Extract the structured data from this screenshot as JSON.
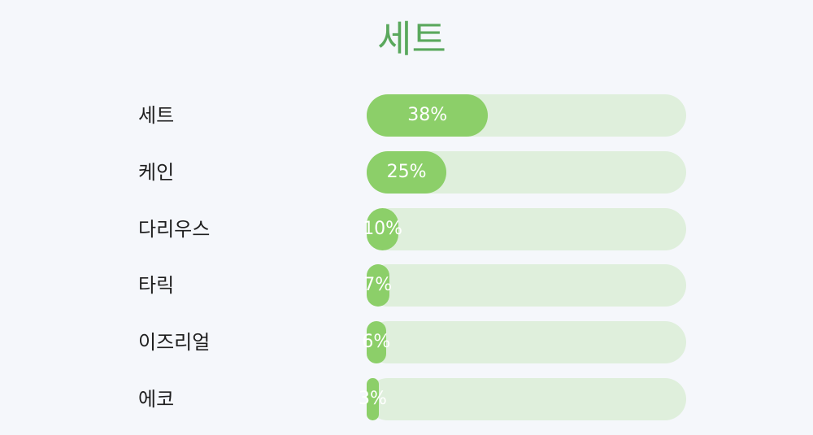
{
  "chart_data": {
    "type": "bar",
    "orientation": "horizontal",
    "title": "세트",
    "categories": [
      "세트",
      "케인",
      "다리우스",
      "타릭",
      "이즈리얼",
      "에코"
    ],
    "values": [
      38,
      25,
      10,
      7,
      6,
      3
    ],
    "value_labels": [
      "38%",
      "25%",
      "10%",
      "7%",
      "6%",
      "3%"
    ],
    "unit": "%",
    "xlim": [
      0,
      100
    ],
    "grid": false,
    "legend": "none"
  },
  "colors": {
    "fill": "#8ccf69",
    "track": "#dfefdc",
    "title": "#5aa85d",
    "label": "#1e1e1e",
    "background": "#f5f7fb"
  }
}
